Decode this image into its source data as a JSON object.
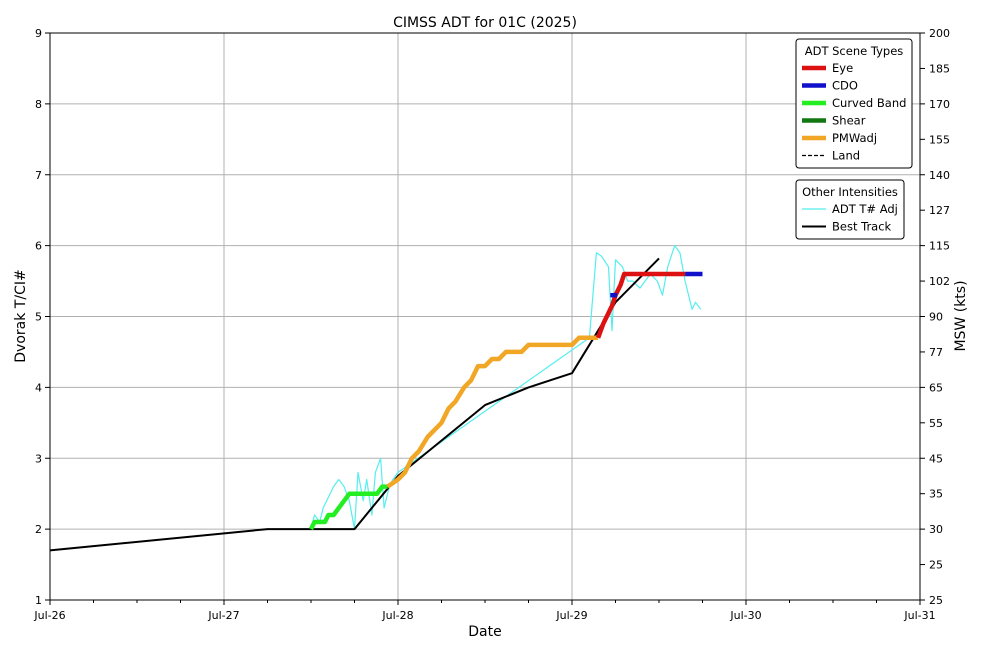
{
  "chart_data": {
    "type": "line",
    "title": "CIMSS ADT for 01C (2025)",
    "xlabel": "Date",
    "ylabel": "Dvorak T/CI#",
    "ylabel_right": "MSW (kts)",
    "xlim": [
      0,
      5
    ],
    "ylim": [
      1,
      9
    ],
    "grid": true,
    "x_ticks": [
      {
        "x": 0,
        "label": "Jul-26"
      },
      {
        "x": 1,
        "label": "Jul-27"
      },
      {
        "x": 2,
        "label": "Jul-28"
      },
      {
        "x": 3,
        "label": "Jul-29"
      },
      {
        "x": 4,
        "label": "Jul-30"
      },
      {
        "x": 5,
        "label": "Jul-31"
      }
    ],
    "x_unit": "days since Jul-26 00Z",
    "y_ticks": [
      "1",
      "2",
      "3",
      "4",
      "5",
      "6",
      "7",
      "8",
      "9"
    ],
    "y_right_ticks": [
      {
        "t": 1,
        "label": "25"
      },
      {
        "t": 1.5,
        "label": "25"
      },
      {
        "t": 2,
        "label": "30"
      },
      {
        "t": 2.5,
        "label": "35"
      },
      {
        "t": 3,
        "label": "45"
      },
      {
        "t": 3.5,
        "label": "55"
      },
      {
        "t": 4,
        "label": "65"
      },
      {
        "t": 4.5,
        "label": "77"
      },
      {
        "t": 5,
        "label": "90"
      },
      {
        "t": 5.5,
        "label": "102"
      },
      {
        "t": 6,
        "label": "115"
      },
      {
        "t": 6.5,
        "label": "127"
      },
      {
        "t": 7,
        "label": "140"
      },
      {
        "t": 7.5,
        "label": "155"
      },
      {
        "t": 8,
        "label": "170"
      },
      {
        "t": 8.5,
        "label": "185"
      },
      {
        "t": 9,
        "label": "200"
      }
    ],
    "legend_scene": {
      "title": "ADT Scene Types",
      "placement": "top-right",
      "entries": [
        {
          "label": "Eye",
          "color": "#dd1111",
          "style": "thick"
        },
        {
          "label": "CDO",
          "color": "#1111cc",
          "style": "thick"
        },
        {
          "label": "Curved Band",
          "color": "#22ee22",
          "style": "thick"
        },
        {
          "label": "Shear",
          "color": "#117711",
          "style": "thick"
        },
        {
          "label": "PMWadj",
          "color": "#f2a626",
          "style": "thick"
        },
        {
          "label": "Land",
          "color": "#000000",
          "style": "dashed"
        }
      ]
    },
    "legend_other": {
      "title": "Other Intensities",
      "placement": "right",
      "entries": [
        {
          "label": "ADT T# Adj",
          "color": "#55eeee",
          "style": "thin"
        },
        {
          "label": "Best Track",
          "color": "#000000",
          "style": "solid"
        }
      ]
    },
    "series": [
      {
        "name": "Best Track",
        "color": "#000000",
        "x": [
          0.0,
          1.25,
          1.75,
          2.0,
          2.5,
          2.75,
          3.0,
          3.25,
          3.5
        ],
        "y": [
          1.7,
          2.0,
          2.0,
          2.75,
          3.75,
          4.0,
          4.2,
          5.2,
          5.82
        ]
      },
      {
        "name": "ADT T# Adj",
        "color": "#55eeee",
        "x": [
          1.5,
          1.52,
          1.55,
          1.57,
          1.6,
          1.63,
          1.66,
          1.69,
          1.72,
          1.75,
          1.77,
          1.8,
          1.82,
          1.85,
          1.87,
          1.9,
          1.92,
          1.95,
          1.97,
          2.0,
          3.1,
          3.14,
          3.17,
          3.21,
          3.23,
          3.25,
          3.29,
          3.32,
          3.35,
          3.39,
          3.42,
          3.45,
          3.49,
          3.52,
          3.55,
          3.59,
          3.62,
          3.65,
          3.69,
          3.71,
          3.74
        ],
        "y": [
          2.0,
          2.2,
          2.1,
          2.3,
          2.45,
          2.6,
          2.7,
          2.6,
          2.4,
          2.0,
          2.8,
          2.4,
          2.7,
          2.2,
          2.8,
          3.0,
          2.3,
          2.6,
          2.7,
          2.8,
          4.7,
          5.9,
          5.85,
          5.7,
          4.8,
          5.8,
          5.7,
          5.5,
          5.5,
          5.4,
          5.5,
          5.6,
          5.5,
          5.3,
          5.7,
          6.0,
          5.9,
          5.5,
          5.1,
          5.2,
          5.1
        ]
      },
      {
        "name": "Curved Band",
        "color": "#22ee22",
        "x": [
          1.5,
          1.52,
          1.55,
          1.58,
          1.6,
          1.63,
          1.66,
          1.69,
          1.72,
          1.75,
          1.8,
          1.85,
          1.88,
          1.91,
          1.94
        ],
        "y": [
          2.0,
          2.1,
          2.1,
          2.1,
          2.2,
          2.2,
          2.3,
          2.4,
          2.5,
          2.5,
          2.5,
          2.5,
          2.5,
          2.6,
          2.6
        ]
      },
      {
        "name": "PMWadj",
        "color": "#f2a626",
        "x": [
          1.94,
          2.0,
          2.04,
          2.08,
          2.12,
          2.17,
          2.21,
          2.25,
          2.29,
          2.33,
          2.38,
          2.42,
          2.46,
          2.5,
          2.54,
          2.58,
          2.62,
          2.66,
          2.71,
          2.75,
          2.8,
          2.85,
          2.9,
          2.95,
          3.0,
          3.04,
          3.08,
          3.12,
          3.15
        ],
        "y": [
          2.6,
          2.7,
          2.8,
          3.0,
          3.1,
          3.3,
          3.4,
          3.5,
          3.7,
          3.8,
          4.0,
          4.1,
          4.3,
          4.3,
          4.4,
          4.4,
          4.5,
          4.5,
          4.5,
          4.6,
          4.6,
          4.6,
          4.6,
          4.6,
          4.6,
          4.7,
          4.7,
          4.7,
          4.7
        ]
      },
      {
        "name": "Eye",
        "color": "#dd1111",
        "x": [
          3.15,
          3.18,
          3.21,
          3.23,
          3.25,
          3.28,
          3.3,
          3.35,
          3.4,
          3.5,
          3.6,
          3.65
        ],
        "y": [
          4.7,
          4.9,
          5.05,
          5.15,
          5.3,
          5.45,
          5.6,
          5.6,
          5.6,
          5.6,
          5.6,
          5.6
        ]
      },
      {
        "name": "CDO",
        "color": "#1111cc",
        "x": [
          3.65,
          3.7,
          3.75
        ],
        "y": [
          5.6,
          5.6,
          5.6
        ]
      },
      {
        "name": "CDO",
        "color": "#1111cc",
        "x": [
          3.22,
          3.26
        ],
        "y": [
          5.3,
          5.3
        ]
      }
    ]
  }
}
